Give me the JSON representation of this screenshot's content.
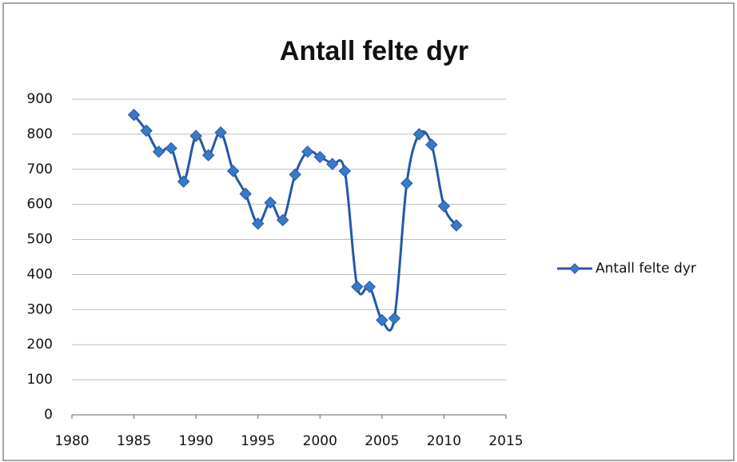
{
  "chart_data": {
    "type": "line",
    "title": "Antall felte dyr",
    "x": [
      1985,
      1986,
      1987,
      1988,
      1989,
      1990,
      1991,
      1992,
      1993,
      1994,
      1995,
      1996,
      1997,
      1998,
      1999,
      2000,
      2001,
      2002,
      2003,
      2004,
      2005,
      2006,
      2007,
      2008,
      2009,
      2010,
      2011
    ],
    "series": [
      {
        "name": "Antall felte dyr",
        "color": "#2458a8",
        "values": [
          855,
          810,
          750,
          760,
          665,
          795,
          740,
          805,
          695,
          630,
          545,
          605,
          555,
          685,
          750,
          735,
          715,
          695,
          365,
          365,
          270,
          275,
          660,
          800,
          770,
          595,
          540
        ]
      }
    ],
    "xlim": [
      1980,
      2015
    ],
    "xticks": [
      1980,
      1985,
      1990,
      1995,
      2000,
      2005,
      2010,
      2015
    ],
    "ylim": [
      0,
      900
    ],
    "yticks": [
      0,
      100,
      200,
      300,
      400,
      500,
      600,
      700,
      800,
      900
    ],
    "grid": true,
    "legend": "right"
  }
}
